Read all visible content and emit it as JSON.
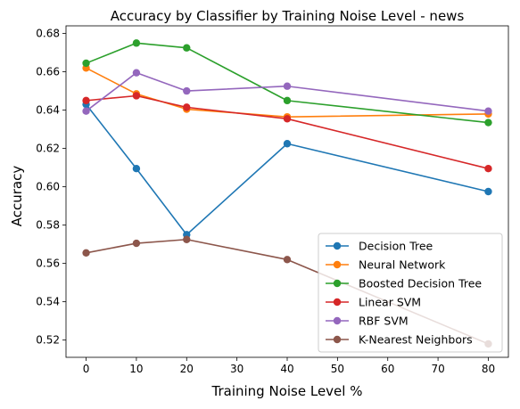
{
  "chart_data": {
    "type": "line",
    "title": "Accuracy by Classifier by Training Noise Level - news",
    "xlabel": "Training Noise Level %",
    "ylabel": "Accuracy",
    "x": [
      0,
      10,
      20,
      40,
      80
    ],
    "xlim": [
      -4,
      84
    ],
    "ylim": [
      0.511,
      0.684
    ],
    "xticks": [
      0,
      10,
      20,
      30,
      40,
      50,
      60,
      70,
      80
    ],
    "yticks": [
      0.52,
      0.54,
      0.56,
      0.58,
      0.6,
      0.62,
      0.64,
      0.66,
      0.68
    ],
    "ytick_labels": [
      "0.52",
      "0.54",
      "0.56",
      "0.58",
      "0.60",
      "0.62",
      "0.64",
      "0.66",
      "0.68"
    ],
    "grid": false,
    "legend_position": "lower-right",
    "series": [
      {
        "name": "Decision Tree",
        "color": "#1f77b4",
        "values": [
          0.643,
          0.6095,
          0.575,
          0.6225,
          0.5975
        ]
      },
      {
        "name": "Neural Network",
        "color": "#ff7f0e",
        "values": [
          0.662,
          0.6485,
          0.6405,
          0.6365,
          0.638
        ]
      },
      {
        "name": "Boosted Decision Tree",
        "color": "#2ca02c",
        "values": [
          0.6645,
          0.675,
          0.6725,
          0.645,
          0.6335
        ]
      },
      {
        "name": "Linear SVM",
        "color": "#d62728",
        "values": [
          0.645,
          0.6475,
          0.6415,
          0.6355,
          0.6095
        ]
      },
      {
        "name": "RBF SVM",
        "color": "#9467bd",
        "values": [
          0.6395,
          0.6595,
          0.65,
          0.6525,
          0.6395
        ]
      },
      {
        "name": "K-Nearest Neighbors",
        "color": "#8c564b",
        "values": [
          0.5655,
          0.5705,
          0.5725,
          0.562,
          0.518
        ]
      }
    ]
  }
}
